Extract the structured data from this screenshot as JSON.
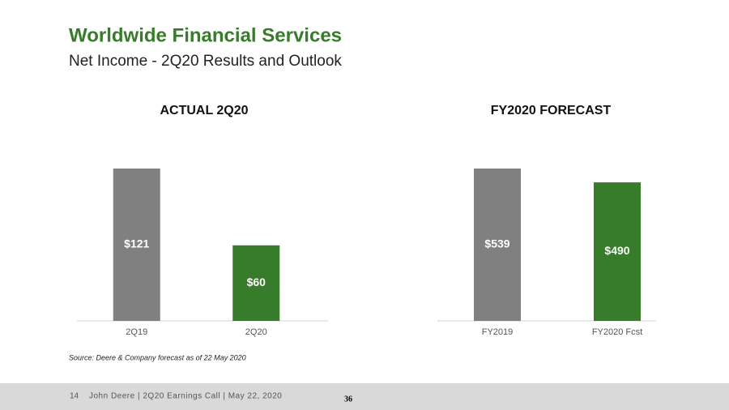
{
  "header": {
    "title": "Worldwide Financial Services",
    "subtitle": "Net Income - 2Q20 Results and Outlook"
  },
  "chart_data": [
    {
      "type": "bar",
      "title": "ACTUAL 2Q20",
      "categories": [
        "2Q19",
        "2Q20"
      ],
      "values": [
        121,
        60
      ],
      "value_labels": [
        "$121",
        "$60"
      ],
      "colors": [
        "#808080",
        "#367c2b"
      ]
    },
    {
      "type": "bar",
      "title": "FY2020 FORECAST",
      "categories": [
        "FY2019",
        "FY2020 Fcst"
      ],
      "values": [
        539,
        490
      ],
      "value_labels": [
        "$539",
        "$490"
      ],
      "colors": [
        "#808080",
        "#367c2b"
      ]
    }
  ],
  "source": "Source: Deere & Company forecast as of 22 May 2020",
  "footer": {
    "page_number": "14",
    "text": "John Deere | 2Q20 Earnings Call | May 22, 2020",
    "slide_number": "36"
  }
}
